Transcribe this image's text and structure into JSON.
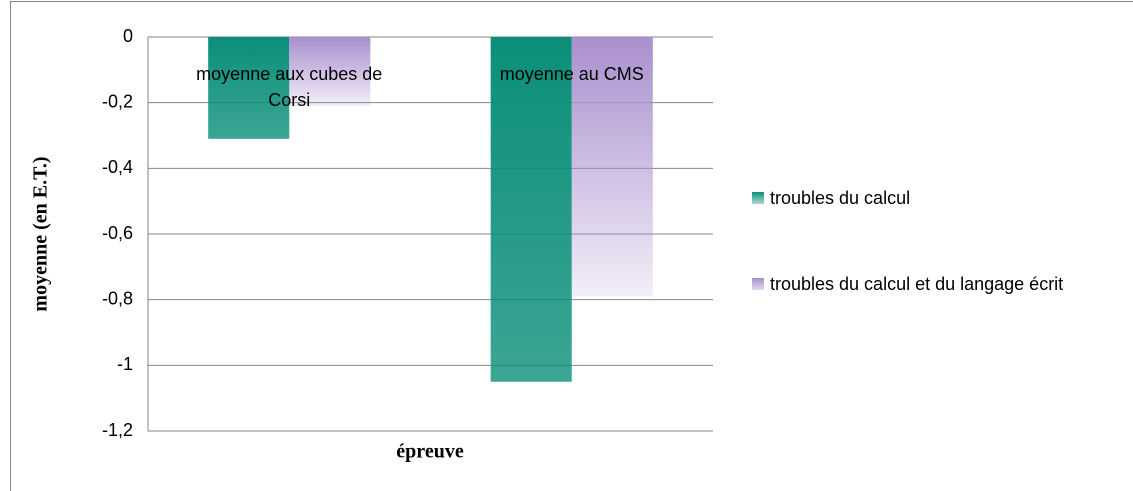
{
  "chart_data": {
    "type": "bar",
    "categories": [
      "moyenne aux cubes de Corsi",
      "moyenne au CMS"
    ],
    "series": [
      {
        "name": "troubles du calcul",
        "color": "#0b8f79",
        "values": [
          -0.31,
          -1.05
        ]
      },
      {
        "name": "troubles du calcul et du langage écrit",
        "color": "#a98fce",
        "values": [
          -0.21,
          -0.79
        ]
      }
    ],
    "xlabel": "épreuve",
    "ylabel": "moyenne (en E.T.)",
    "ylim": [
      -1.2,
      0
    ],
    "yticks": [
      {
        "value": -1.2,
        "label": "-1,2"
      },
      {
        "value": -1,
        "label": "-1"
      },
      {
        "value": -0.8,
        "label": "-0,8"
      },
      {
        "value": -0.6,
        "label": "-0,6"
      },
      {
        "value": -0.4,
        "label": "-0,4"
      },
      {
        "value": -0.2,
        "label": "-0,2"
      },
      0
    ],
    "grid": true,
    "legend": "right"
  }
}
